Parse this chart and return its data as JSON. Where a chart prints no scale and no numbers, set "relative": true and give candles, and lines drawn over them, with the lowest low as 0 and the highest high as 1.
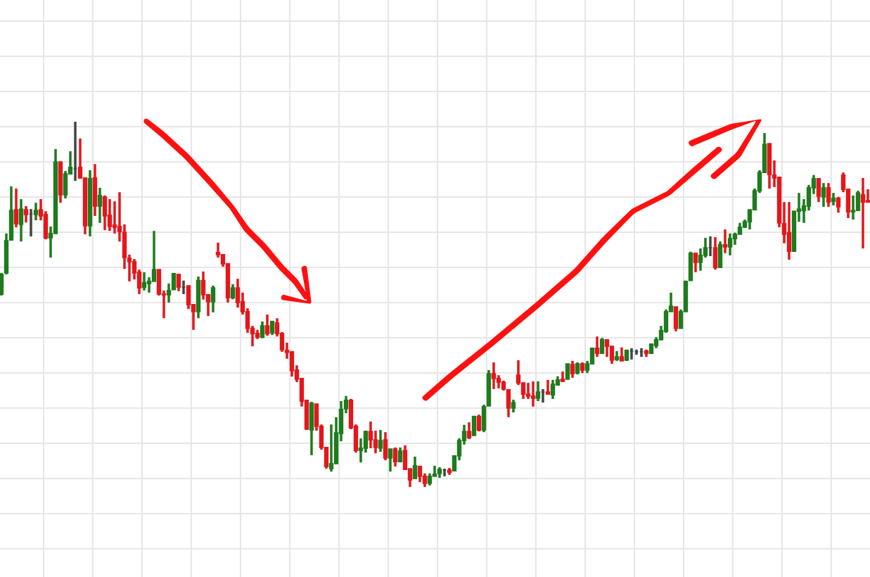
{
  "chart_data": {
    "type": "candlestick",
    "relative": true,
    "grid": true,
    "categories": [
      null,
      null,
      null,
      null,
      null,
      null,
      null,
      null,
      null,
      null,
      null,
      null,
      null,
      null,
      null,
      null,
      null,
      null,
      null,
      null,
      null,
      null,
      null,
      null,
      null,
      null,
      null,
      null,
      null,
      null,
      null,
      null,
      null,
      null,
      null,
      null,
      null,
      null,
      null,
      null,
      null,
      null,
      null,
      null,
      null,
      null,
      null,
      null,
      null,
      null,
      null,
      null,
      null,
      null,
      null,
      null,
      null,
      null,
      null,
      null,
      null,
      null,
      null,
      null,
      null,
      null,
      null,
      null,
      null,
      null,
      null,
      null,
      null,
      null,
      null,
      null,
      null,
      null,
      null,
      null,
      null,
      null,
      null,
      null,
      null,
      null,
      null,
      null,
      null,
      null,
      null,
      null,
      null,
      null,
      null,
      null,
      null,
      null,
      null,
      null,
      null,
      null,
      null,
      null,
      null,
      null,
      null,
      null,
      null,
      null,
      null,
      null,
      null,
      null,
      null,
      null,
      null,
      null,
      null,
      null,
      null,
      null,
      null,
      null,
      null,
      null,
      null,
      null,
      null,
      null,
      null,
      null,
      null,
      null,
      null,
      null,
      null,
      null,
      null,
      null,
      null,
      null,
      null,
      null,
      null,
      null,
      null,
      null,
      null,
      null,
      null,
      null,
      null,
      null,
      null,
      null,
      null,
      null,
      null,
      null,
      null,
      null,
      null,
      null,
      null,
      null,
      null,
      null,
      null,
      null,
      null,
      null,
      null,
      null,
      null,
      null,
      null
    ],
    "ohlc": [
      [
        0.528,
        0.586,
        0.524,
        0.582
      ],
      [
        0.586,
        0.694,
        0.582,
        0.674
      ],
      [
        0.676,
        0.823,
        0.676,
        0.757
      ],
      [
        0.759,
        0.817,
        0.711,
        0.721
      ],
      [
        0.719,
        0.788,
        0.672,
        0.761
      ],
      [
        0.759,
        0.769,
        0.724,
        0.746
      ],
      [
        0.748,
        0.761,
        0.686,
        0.748
      ],
      [
        0.746,
        0.778,
        0.73,
        0.757
      ],
      [
        0.759,
        0.788,
        0.73,
        0.742
      ],
      [
        0.746,
        0.755,
        0.678,
        0.682
      ],
      [
        0.682,
        0.713,
        0.628,
        0.694
      ],
      [
        0.694,
        0.925,
        0.694,
        0.89
      ],
      [
        0.89,
        0.89,
        0.778,
        0.8
      ],
      [
        0.8,
        0.865,
        0.79,
        0.857
      ],
      [
        0.857,
        0.919,
        0.857,
        0.875
      ],
      [
        0.871,
        1,
        0.838,
        0.871
      ],
      [
        0.875,
        0.954,
        0.844,
        0.846
      ],
      [
        0.846,
        0.846,
        0.692,
        0.715
      ],
      [
        0.715,
        0.867,
        0.686,
        0.844
      ],
      [
        0.846,
        0.884,
        0.742,
        0.769
      ],
      [
        0.769,
        0.819,
        0.723,
        0.798
      ],
      [
        0.794,
        0.798,
        0.703,
        0.742
      ],
      [
        0.744,
        0.788,
        0.701,
        0.713
      ],
      [
        0.717,
        0.782,
        0.694,
        0.711
      ],
      [
        0.713,
        0.807,
        0.672,
        0.699
      ],
      [
        0.697,
        0.719,
        0.597,
        0.628
      ],
      [
        0.626,
        0.636,
        0.563,
        0.617
      ],
      [
        0.617,
        0.624,
        0.568,
        0.586
      ],
      [
        0.588,
        0.595,
        0.528,
        0.545
      ],
      [
        0.547,
        0.588,
        0.538,
        0.559
      ],
      [
        0.557,
        0.574,
        0.532,
        0.563
      ],
      [
        0.563,
        0.701,
        0.563,
        0.595
      ],
      [
        0.595,
        0.595,
        0.524,
        0.528
      ],
      [
        0.528,
        0.538,
        0.462,
        0.526
      ],
      [
        0.526,
        0.557,
        0.505,
        0.538
      ],
      [
        0.54,
        0.586,
        0.54,
        0.584
      ],
      [
        0.582,
        0.582,
        0.536,
        0.547
      ],
      [
        0.547,
        0.565,
        0.528,
        0.547
      ],
      [
        0.551,
        0.551,
        0.487,
        0.499
      ],
      [
        0.499,
        0.499,
        0.43,
        0.48
      ],
      [
        0.48,
        0.576,
        0.462,
        0.565
      ],
      [
        0.565,
        0.59,
        0.513,
        0.526
      ],
      [
        0.526,
        0.526,
        0.468,
        0.507
      ],
      [
        0.507,
        0.551,
        0.478,
        0.545
      ],
      [
        0.642,
        0.669,
        0.628,
        0.636
      ],
      [
        0.636,
        0.636,
        0.603,
        0.611
      ],
      [
        0.611,
        0.611,
        0.505,
        0.518
      ],
      [
        0.518,
        0.555,
        0.514,
        0.545
      ],
      [
        0.545,
        0.57,
        0.491,
        0.505
      ],
      [
        0.507,
        0.532,
        0.472,
        0.48
      ],
      [
        0.48,
        0.489,
        0.422,
        0.434
      ],
      [
        0.434,
        0.441,
        0.385,
        0.42
      ],
      [
        0.42,
        0.43,
        0.405,
        0.41
      ],
      [
        0.41,
        0.453,
        0.407,
        0.441
      ],
      [
        0.441,
        0.472,
        0.414,
        0.42
      ],
      [
        0.422,
        0.455,
        0.416,
        0.453
      ],
      [
        0.449,
        0.462,
        0.412,
        0.42
      ],
      [
        0.42,
        0.424,
        0.37,
        0.376
      ],
      [
        0.374,
        0.395,
        0.351,
        0.368
      ],
      [
        0.37,
        0.37,
        0.302,
        0.318
      ],
      [
        0.32,
        0.333,
        0.287,
        0.295
      ],
      [
        0.297,
        0.297,
        0.22,
        0.235
      ],
      [
        0.237,
        0.237,
        0.156,
        0.158
      ],
      [
        0.156,
        0.233,
        0.087,
        0.229
      ],
      [
        0.227,
        0.227,
        0.154,
        0.166
      ],
      [
        0.166,
        0.171,
        0.102,
        0.108
      ],
      [
        0.108,
        0.108,
        0.05,
        0.056
      ],
      [
        0.05,
        0.171,
        0.042,
        0.064
      ],
      [
        0.064,
        0.191,
        0.064,
        0.148
      ],
      [
        0.146,
        0.235,
        0.125,
        0.212
      ],
      [
        0.214,
        0.249,
        0.202,
        0.237
      ],
      [
        0.237,
        0.241,
        0.158,
        0.162
      ],
      [
        0.166,
        0.171,
        0.094,
        0.1
      ],
      [
        0.1,
        0.133,
        0.067,
        0.106
      ],
      [
        0.106,
        0.154,
        0.094,
        0.152
      ],
      [
        0.152,
        0.179,
        0.106,
        0.129
      ],
      [
        0.129,
        0.154,
        0.092,
        0.108
      ],
      [
        0.106,
        0.156,
        0.096,
        0.127
      ],
      [
        0.129,
        0.15,
        0.073,
        0.079
      ],
      [
        0.079,
        0.104,
        0.042,
        0.104
      ],
      [
        0.104,
        0.108,
        0.056,
        0.069
      ],
      [
        0.069,
        0.108,
        0.069,
        0.098
      ],
      [
        0.1,
        0.114,
        0.048,
        0.048
      ],
      [
        0.05,
        0.05,
        0,
        0.019
      ],
      [
        0.023,
        0.083,
        0.023,
        0.058
      ],
      [
        0.056,
        0.058,
        0.013,
        0.029
      ],
      [
        0.029,
        0.037,
        0,
        0.01
      ],
      [
        0.01,
        0.037,
        0.004,
        0.029
      ],
      [
        0.029,
        0.058,
        0.029,
        0.035
      ],
      [
        0.037,
        0.054,
        0.025,
        0.048
      ],
      [
        0.046,
        0.05,
        0.029,
        0.046
      ],
      [
        0.046,
        0.052,
        0.033,
        0.04
      ],
      [
        0.044,
        0.087,
        0.044,
        0.085
      ],
      [
        0.085,
        0.133,
        0.073,
        0.127
      ],
      [
        0.127,
        0.17,
        0.116,
        0.152
      ],
      [
        0.152,
        0.177,
        0.131,
        0.135
      ],
      [
        0.141,
        0.195,
        0.141,
        0.193
      ],
      [
        0.193,
        0.198,
        0.152,
        0.156
      ],
      [
        0.156,
        0.225,
        0.15,
        0.22
      ],
      [
        0.222,
        0.32,
        0.222,
        0.31
      ],
      [
        0.31,
        0.341,
        0.268,
        0.297
      ],
      [
        0.297,
        0.306,
        0.27,
        0.287
      ],
      [
        0.287,
        0.291,
        0.264,
        0.268
      ],
      [
        0.266,
        0.266,
        0.191,
        0.216
      ],
      [
        0.216,
        0.239,
        0.204,
        0.231
      ],
      [
        0.306,
        0.347,
        0.279,
        0.285
      ],
      [
        0.285,
        0.285,
        0.241,
        0.254
      ],
      [
        0.254,
        0.285,
        0.241,
        0.249
      ],
      [
        0.249,
        0.289,
        0.22,
        0.243
      ],
      [
        0.243,
        0.289,
        0.235,
        0.26
      ],
      [
        0.26,
        0.268,
        0.231,
        0.26
      ],
      [
        0.26,
        0.293,
        0.254,
        0.254
      ],
      [
        0.252,
        0.293,
        0.241,
        0.281
      ],
      [
        0.279,
        0.303,
        0.279,
        0.293
      ],
      [
        0.295,
        0.316,
        0.287,
        0.289
      ],
      [
        0.295,
        0.337,
        0.295,
        0.337
      ],
      [
        0.335,
        0.345,
        0.299,
        0.31
      ],
      [
        0.312,
        0.341,
        0.308,
        0.337
      ],
      [
        0.337,
        0.341,
        0.312,
        0.32
      ],
      [
        0.32,
        0.345,
        0.312,
        0.337
      ],
      [
        0.337,
        0.38,
        0.337,
        0.38
      ],
      [
        0.38,
        0.412,
        0.356,
        0.366
      ],
      [
        0.366,
        0.408,
        0.366,
        0.403
      ],
      [
        0.403,
        0.403,
        0.356,
        0.385
      ],
      [
        0.385,
        0.385,
        0.337,
        0.347
      ],
      [
        0.349,
        0.372,
        0.345,
        0.356
      ],
      [
        0.356,
        0.382,
        0.345,
        0.345
      ],
      [
        0.347,
        0.376,
        0.345,
        0.374
      ],
      [
        0.372,
        0.38,
        0.349,
        0.372
      ],
      [
        0.37,
        0.376,
        0.362,
        0.37
      ],
      [
        0.37,
        0.38,
        0.356,
        0.37
      ],
      [
        0.372,
        0.376,
        0.356,
        0.366
      ],
      [
        0.366,
        0.393,
        0.364,
        0.391
      ],
      [
        0.387,
        0.41,
        0.38,
        0.403
      ],
      [
        0.403,
        0.441,
        0.403,
        0.428
      ],
      [
        0.426,
        0.486,
        0.422,
        0.48
      ],
      [
        0.48,
        0.532,
        0.48,
        0.495
      ],
      [
        0.493,
        0.493,
        0.426,
        0.434
      ],
      [
        0.434,
        0.486,
        0.434,
        0.48
      ],
      [
        0.48,
        0.565,
        0.48,
        0.563
      ],
      [
        0.565,
        0.644,
        0.565,
        0.64
      ],
      [
        0.64,
        0.64,
        0.588,
        0.615
      ],
      [
        0.615,
        0.653,
        0.592,
        0.634
      ],
      [
        0.634,
        0.682,
        0.628,
        0.655
      ],
      [
        0.655,
        0.686,
        0.632,
        0.655
      ],
      [
        0.655,
        0.684,
        0.595,
        0.601
      ],
      [
        0.601,
        0.672,
        0.601,
        0.663
      ],
      [
        0.663,
        0.705,
        0.64,
        0.657
      ],
      [
        0.657,
        0.694,
        0.634,
        0.68
      ],
      [
        0.68,
        0.696,
        0.663,
        0.692
      ],
      [
        0.692,
        0.723,
        0.692,
        0.711
      ],
      [
        0.711,
        0.732,
        0.709,
        0.726
      ],
      [
        0.726,
        0.759,
        0.705,
        0.759
      ],
      [
        0.759,
        0.817,
        0.759,
        0.811
      ],
      [
        0.811,
        0.867,
        0.805,
        0.861
      ],
      [
        0.861,
        0.969,
        0.861,
        0.938
      ],
      [
        0.94,
        0.94,
        0.817,
        0.855
      ],
      [
        0.854,
        0.894,
        0.821,
        0.846
      ],
      [
        0.848,
        0.848,
        0.711,
        0.723
      ],
      [
        0.721,
        0.78,
        0.667,
        0.692
      ],
      [
        0.696,
        0.78,
        0.622,
        0.645
      ],
      [
        0.645,
        0.755,
        0.645,
        0.755
      ],
      [
        0.755,
        0.805,
        0.726,
        0.761
      ],
      [
        0.757,
        0.788,
        0.723,
        0.769
      ],
      [
        0.769,
        0.827,
        0.757,
        0.819
      ],
      [
        0.819,
        0.854,
        0.802,
        0.844
      ],
      [
        0.844,
        0.844,
        0.78,
        0.796
      ],
      [
        0.794,
        0.832,
        0.767,
        0.819
      ],
      [
        0.819,
        0.832,
        0.767,
        0.78
      ],
      [
        0.782,
        0.805,
        0.771,
        0.79
      ],
      [
        0.79,
        0.794,
        0.751,
        0.767
      ],
      [
        0.854,
        0.861,
        0.807,
        0.815
      ],
      [
        0.815,
        0.815,
        0.736,
        0.753
      ],
      [
        0.753,
        0.798,
        0.732,
        0.757
      ],
      [
        0.757,
        0.811,
        0.757,
        0.805
      ],
      [
        0.8,
        0.846,
        0.653,
        0.78
      ],
      [
        0.784,
        0.815,
        0.778,
        0.78
      ]
    ],
    "colors": [
      "#1e7b1e",
      "#1e7b1e",
      "#1e7b1e",
      "#e3171c",
      "#1e7b1e",
      "#e3171c",
      "#444444",
      "#1e7b1e",
      "#e3171c",
      "#e3171c",
      "#1e7b1e",
      "#1e7b1e",
      "#e3171c",
      "#1e7b1e",
      "#1e7b1e",
      "#444444",
      "#e3171c",
      "#e3171c",
      "#1e7b1e",
      "#e3171c",
      "#1e7b1e",
      "#e3171c",
      "#e3171c",
      "#e3171c",
      "#e3171c",
      "#e3171c",
      "#e3171c",
      "#e3171c",
      "#e3171c",
      "#1e7b1e",
      "#1e7b1e",
      "#1e7b1e",
      "#e3171c",
      "#e3171c",
      "#1e7b1e",
      "#1e7b1e",
      "#e3171c",
      "#444444",
      "#e3171c",
      "#e3171c",
      "#1e7b1e",
      "#e3171c",
      "#e3171c",
      "#1e7b1e",
      "#e3171c",
      "#e3171c",
      "#e3171c",
      "#1e7b1e",
      "#e3171c",
      "#e3171c",
      "#e3171c",
      "#e3171c",
      "#e3171c",
      "#1e7b1e",
      "#e3171c",
      "#1e7b1e",
      "#e3171c",
      "#e3171c",
      "#e3171c",
      "#e3171c",
      "#e3171c",
      "#e3171c",
      "#e3171c",
      "#1e7b1e",
      "#e3171c",
      "#e3171c",
      "#e3171c",
      "#1e7b1e",
      "#1e7b1e",
      "#1e7b1e",
      "#1e7b1e",
      "#e3171c",
      "#e3171c",
      "#1e7b1e",
      "#1e7b1e",
      "#e3171c",
      "#e3171c",
      "#1e7b1e",
      "#e3171c",
      "#1e7b1e",
      "#e3171c",
      "#1e7b1e",
      "#e3171c",
      "#e3171c",
      "#1e7b1e",
      "#e3171c",
      "#e3171c",
      "#1e7b1e",
      "#1e7b1e",
      "#1e7b1e",
      "#444444",
      "#e3171c",
      "#1e7b1e",
      "#1e7b1e",
      "#1e7b1e",
      "#e3171c",
      "#1e7b1e",
      "#e3171c",
      "#1e7b1e",
      "#1e7b1e",
      "#e3171c",
      "#e3171c",
      "#e3171c",
      "#e3171c",
      "#1e7b1e",
      "#e3171c",
      "#e3171c",
      "#e3171c",
      "#e3171c",
      "#1e7b1e",
      "#444444",
      "#e3171c",
      "#1e7b1e",
      "#1e7b1e",
      "#e3171c",
      "#1e7b1e",
      "#e3171c",
      "#1e7b1e",
      "#e3171c",
      "#1e7b1e",
      "#1e7b1e",
      "#e3171c",
      "#1e7b1e",
      "#e3171c",
      "#e3171c",
      "#1e7b1e",
      "#e3171c",
      "#1e7b1e",
      "#444444",
      "#444444",
      "#444444",
      "#e3171c",
      "#1e7b1e",
      "#1e7b1e",
      "#1e7b1e",
      "#1e7b1e",
      "#1e7b1e",
      "#e3171c",
      "#1e7b1e",
      "#1e7b1e",
      "#1e7b1e",
      "#e3171c",
      "#1e7b1e",
      "#1e7b1e",
      "#444444",
      "#e3171c",
      "#1e7b1e",
      "#e3171c",
      "#1e7b1e",
      "#1e7b1e",
      "#1e7b1e",
      "#1e7b1e",
      "#1e7b1e",
      "#1e7b1e",
      "#1e7b1e",
      "#1e7b1e",
      "#e3171c",
      "#e3171c",
      "#e3171c",
      "#e3171c",
      "#e3171c",
      "#1e7b1e",
      "#1e7b1e",
      "#1e7b1e",
      "#1e7b1e",
      "#1e7b1e",
      "#e3171c",
      "#1e7b1e",
      "#e3171c",
      "#1e7b1e",
      "#e3171c",
      "#e3171c",
      "#e3171c",
      "#1e7b1e",
      "#1e7b1e",
      "#e3171c",
      "#e3171c"
    ]
  }
}
